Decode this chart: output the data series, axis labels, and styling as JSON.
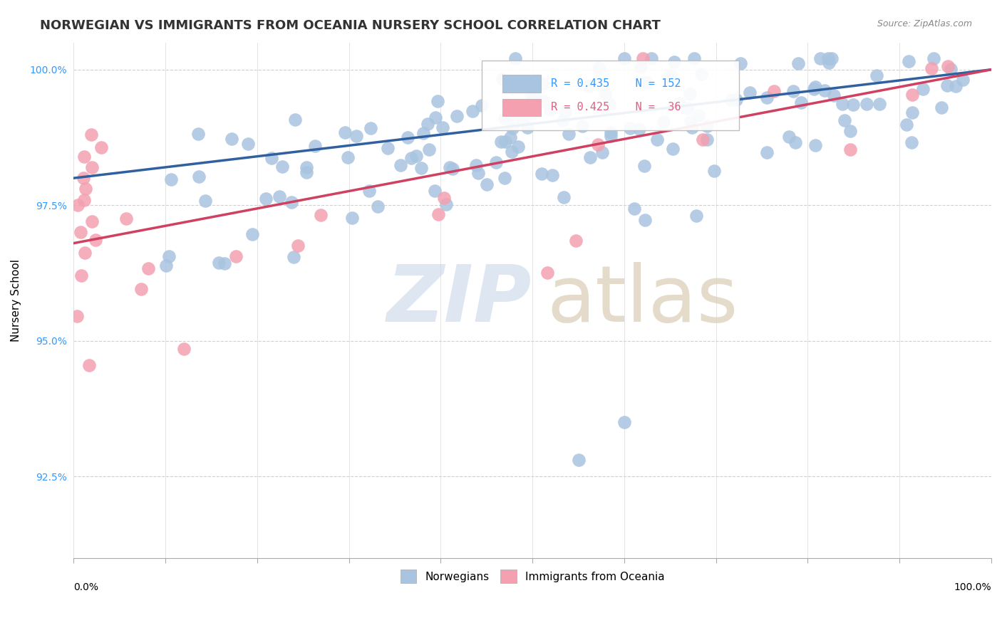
{
  "title": "NORWEGIAN VS IMMIGRANTS FROM OCEANIA NURSERY SCHOOL CORRELATION CHART",
  "source": "Source: ZipAtlas.com",
  "ylabel": "Nursery School",
  "xlim": [
    0.0,
    1.0
  ],
  "ylim": [
    0.91,
    1.005
  ],
  "yticks": [
    0.925,
    0.95,
    0.975,
    1.0
  ],
  "ytick_labels": [
    "92.5%",
    "95.0%",
    "97.5%",
    "100.0%"
  ],
  "legend_blue_label": "Norwegians",
  "legend_pink_label": "Immigrants from Oceania",
  "legend_R_blue": "R = 0.435",
  "legend_N_blue": "N = 152",
  "legend_R_pink": "R = 0.425",
  "legend_N_pink": "N =  36",
  "blue_color": "#a8c4e0",
  "pink_color": "#f4a0b0",
  "blue_line_color": "#3060a0",
  "pink_line_color": "#d04060",
  "background_color": "#ffffff",
  "grid_color": "#d0d0d0",
  "title_fontsize": 13,
  "label_fontsize": 11,
  "tick_fontsize": 10,
  "blue_line_x": [
    0.0,
    1.0
  ],
  "blue_line_y": [
    0.98,
    1.0
  ],
  "pink_line_x": [
    0.0,
    1.0
  ],
  "pink_line_y": [
    0.968,
    1.0
  ]
}
